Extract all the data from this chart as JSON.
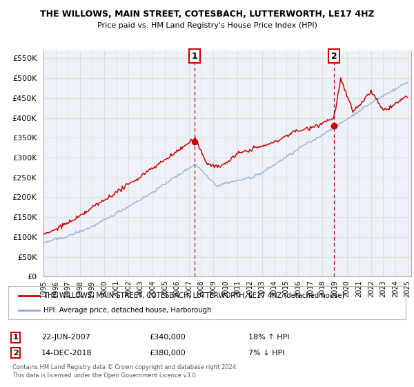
{
  "title": "THE WILLOWS, MAIN STREET, COTESBACH, LUTTERWORTH, LE17 4HZ",
  "subtitle": "Price paid vs. HM Land Registry's House Price Index (HPI)",
  "ylabel_ticks": [
    "£0",
    "£50K",
    "£100K",
    "£150K",
    "£200K",
    "£250K",
    "£300K",
    "£350K",
    "£400K",
    "£450K",
    "£500K",
    "£550K"
  ],
  "ytick_values": [
    0,
    50000,
    100000,
    150000,
    200000,
    250000,
    300000,
    350000,
    400000,
    450000,
    500000,
    550000
  ],
  "ylim": [
    0,
    570000
  ],
  "xlim_start": 1995.0,
  "xlim_end": 2025.3,
  "marker1_x": 2007.47,
  "marker1_y": 340000,
  "marker2_x": 2018.95,
  "marker2_y": 380000,
  "legend_line1": "THE WILLOWS, MAIN STREET, COTESBACH, LUTTERWORTH, LE17 4HZ (detached house)",
  "legend_line2": "HPI: Average price, detached house, Harborough",
  "annotation1_date": "22-JUN-2007",
  "annotation1_price": "£340,000",
  "annotation1_hpi": "18% ↑ HPI",
  "annotation2_date": "14-DEC-2018",
  "annotation2_price": "£380,000",
  "annotation2_hpi": "7% ↓ HPI",
  "footnote": "Contains HM Land Registry data © Crown copyright and database right 2024.\nThis data is licensed under the Open Government Licence v3.0.",
  "line_color_red": "#cc0000",
  "line_color_blue": "#88aadd",
  "grid_color": "#dddddd",
  "background_color": "#ffffff",
  "plot_bg_color": "#eef2f8"
}
